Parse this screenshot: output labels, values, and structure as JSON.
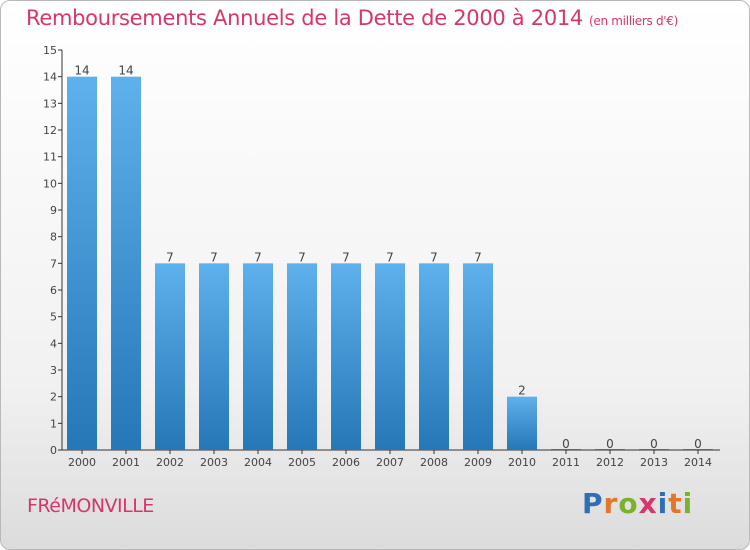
{
  "header": {
    "title": "Remboursements Annuels de la Dette de 2000 à 2014",
    "unit": "(en milliers d'€)"
  },
  "commune": "FRéMONVILLE",
  "logo": {
    "text": "Proxiti",
    "colors": [
      "#2f6db5",
      "#e0772a",
      "#7bb22b",
      "#d6366c",
      "#2f6db5",
      "#e0772a",
      "#7bb22b"
    ]
  },
  "colors": {
    "bar_light": "#5eb1ec",
    "bar_dark": "#2577b6",
    "accent": "#d6366c",
    "axis": "#333333"
  },
  "chart_data": {
    "type": "bar",
    "title": "Remboursements Annuels de la Dette de 2000 à 2014",
    "ylabel": "",
    "xlabel": "",
    "categories": [
      "2000",
      "2001",
      "2002",
      "2003",
      "2004",
      "2005",
      "2006",
      "2007",
      "2008",
      "2009",
      "2010",
      "2011",
      "2012",
      "2013",
      "2014"
    ],
    "values": [
      14,
      14,
      7,
      7,
      7,
      7,
      7,
      7,
      7,
      7,
      2,
      0,
      0,
      0,
      0
    ],
    "data_labels": [
      "14",
      "14",
      "7",
      "7",
      "7",
      "7",
      "7",
      "7",
      "7",
      "7",
      "2",
      "0",
      "0",
      "0",
      "0"
    ],
    "y_ticks": [
      "0",
      "1",
      "2",
      "3",
      "4",
      "5",
      "6",
      "7",
      "8",
      "9",
      "10",
      "11",
      "12",
      "13",
      "14",
      "15"
    ],
    "ylim": [
      0,
      15
    ],
    "grid": false
  }
}
